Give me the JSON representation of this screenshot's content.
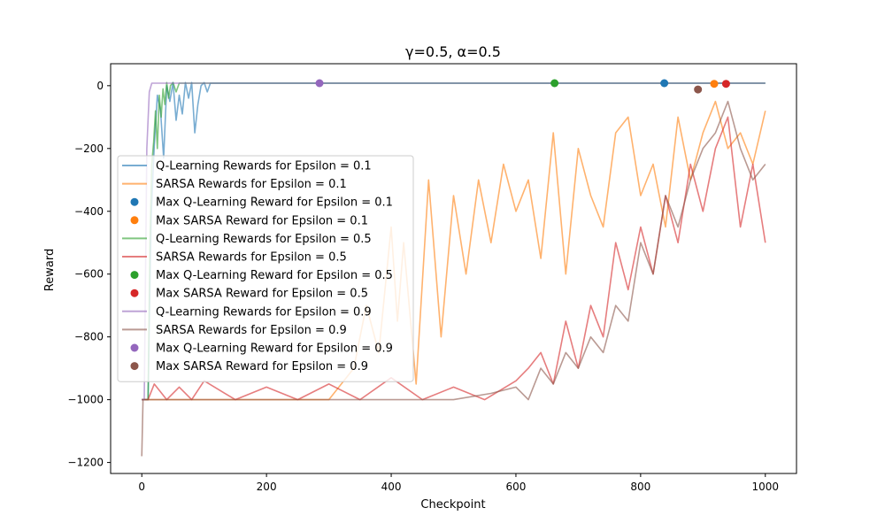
{
  "chart_data": {
    "type": "line",
    "title": "γ=0.5, α=0.5",
    "xlabel": "Checkpoint",
    "ylabel": "Reward",
    "xlim": [
      -50,
      1050
    ],
    "ylim": [
      -1235,
      70
    ],
    "x_ticks": [
      0,
      200,
      400,
      600,
      800,
      1000
    ],
    "y_ticks": [
      0,
      -200,
      -400,
      -600,
      -800,
      -1000,
      -1200
    ],
    "grid": false,
    "legend_position": "center-left",
    "series": [
      {
        "name": "Q-Learning Rewards for Epsilon = 0.1",
        "kind": "line",
        "color": "#1f77b4",
        "opacity": 0.6,
        "x": [
          0,
          5,
          10,
          15,
          20,
          25,
          30,
          35,
          40,
          45,
          50,
          55,
          60,
          65,
          70,
          75,
          80,
          85,
          90,
          95,
          100,
          105,
          110,
          200,
          400,
          600,
          800,
          1000
        ],
        "y": [
          -1000,
          -1000,
          -1000,
          -420,
          -190,
          -30,
          -80,
          -230,
          0,
          -50,
          10,
          -110,
          -30,
          -90,
          10,
          -40,
          10,
          -150,
          -60,
          0,
          10,
          -20,
          8,
          8,
          8,
          8,
          8,
          8
        ]
      },
      {
        "name": "SARSA Rewards for Epsilon = 0.1",
        "kind": "line",
        "color": "#ff7f0e",
        "opacity": 0.6,
        "x": [
          0,
          30,
          60,
          100,
          150,
          200,
          250,
          300,
          340,
          360,
          380,
          400,
          410,
          420,
          440,
          460,
          480,
          500,
          520,
          540,
          560,
          580,
          600,
          620,
          640,
          660,
          680,
          700,
          720,
          740,
          760,
          780,
          800,
          820,
          840,
          860,
          880,
          900,
          920,
          940,
          960,
          980,
          1000
        ],
        "y": [
          -1000,
          -1000,
          -1000,
          -1000,
          -1000,
          -1000,
          -1000,
          -1000,
          -900,
          -700,
          -850,
          -450,
          -750,
          -500,
          -950,
          -300,
          -800,
          -350,
          -600,
          -300,
          -500,
          -250,
          -400,
          -300,
          -550,
          -150,
          -600,
          -200,
          -350,
          -450,
          -150,
          -100,
          -350,
          -250,
          -450,
          -100,
          -300,
          -150,
          -50,
          -200,
          -150,
          -250,
          -80
        ]
      },
      {
        "name": "Q-Learning Rewards for Epsilon = 0.5",
        "kind": "line",
        "color": "#2ca02c",
        "opacity": 0.6,
        "x": [
          0,
          5,
          10,
          13,
          16,
          19,
          22,
          25,
          28,
          31,
          34,
          37,
          40,
          43,
          46,
          50,
          55,
          60,
          65,
          200,
          400,
          600,
          800,
          1000
        ],
        "y": [
          -1000,
          -1000,
          -1000,
          -500,
          -250,
          -180,
          -80,
          -200,
          -30,
          -100,
          -10,
          -60,
          10,
          -40,
          0,
          10,
          -20,
          8,
          8,
          8,
          8,
          8,
          8,
          8
        ]
      },
      {
        "name": "SARSA Rewards for Epsilon = 0.5",
        "kind": "line",
        "color": "#d62728",
        "opacity": 0.6,
        "x": [
          0,
          10,
          20,
          40,
          60,
          80,
          100,
          150,
          200,
          250,
          300,
          350,
          400,
          450,
          500,
          550,
          600,
          620,
          640,
          660,
          680,
          700,
          720,
          740,
          760,
          780,
          800,
          820,
          840,
          860,
          880,
          900,
          920,
          940,
          960,
          980,
          1000
        ],
        "y": [
          -1000,
          -1000,
          -950,
          -1000,
          -960,
          -1000,
          -940,
          -1000,
          -960,
          -1000,
          -950,
          -1000,
          -930,
          -1000,
          -960,
          -1000,
          -940,
          -900,
          -850,
          -950,
          -750,
          -900,
          -700,
          -800,
          -500,
          -650,
          -450,
          -600,
          -350,
          -500,
          -250,
          -400,
          -200,
          -100,
          -450,
          -250,
          -500
        ]
      },
      {
        "name": "Q-Learning Rewards for Epsilon = 0.9",
        "kind": "line",
        "color": "#9467bd",
        "opacity": 0.6,
        "x": [
          0,
          4,
          8,
          12,
          16,
          20,
          200,
          400,
          600,
          800,
          1000
        ],
        "y": [
          -1000,
          -1000,
          -200,
          -20,
          8,
          8,
          8,
          8,
          8,
          8,
          8
        ]
      },
      {
        "name": "SARSA Rewards for Epsilon = 0.9",
        "kind": "line",
        "color": "#8c564b",
        "opacity": 0.6,
        "x": [
          0,
          2,
          5,
          10,
          100,
          200,
          300,
          400,
          500,
          560,
          600,
          620,
          640,
          660,
          680,
          700,
          720,
          740,
          760,
          780,
          800,
          820,
          840,
          860,
          880,
          900,
          920,
          940,
          960,
          980,
          1000
        ],
        "y": [
          -1180,
          -1000,
          -1000,
          -1000,
          -1000,
          -1000,
          -1000,
          -1000,
          -1000,
          -980,
          -960,
          -1000,
          -900,
          -950,
          -850,
          -900,
          -800,
          -850,
          -700,
          -750,
          -500,
          -600,
          -350,
          -450,
          -300,
          -200,
          -150,
          -50,
          -200,
          -300,
          -250
        ]
      },
      {
        "name": "Max Q-Learning Reward for Epsilon = 0.1",
        "kind": "point",
        "color": "#1f77b4",
        "x": [
          838
        ],
        "y": [
          8
        ]
      },
      {
        "name": "Max SARSA Reward for Epsilon = 0.1",
        "kind": "point",
        "color": "#ff7f0e",
        "x": [
          918
        ],
        "y": [
          6
        ]
      },
      {
        "name": "Max Q-Learning Reward for Epsilon = 0.5",
        "kind": "point",
        "color": "#2ca02c",
        "x": [
          662
        ],
        "y": [
          8
        ]
      },
      {
        "name": "Max SARSA Reward for Epsilon = 0.5",
        "kind": "point",
        "color": "#d62728",
        "x": [
          937
        ],
        "y": [
          6
        ]
      },
      {
        "name": "Max Q-Learning Reward for Epsilon = 0.9",
        "kind": "point",
        "color": "#9467bd",
        "x": [
          285
        ],
        "y": [
          8
        ]
      },
      {
        "name": "Max SARSA Reward for Epsilon = 0.9",
        "kind": "point",
        "color": "#8c564b",
        "x": [
          892
        ],
        "y": [
          -12
        ]
      }
    ],
    "legend_order": [
      "Q-Learning Rewards for Epsilon = 0.1",
      "SARSA Rewards for Epsilon = 0.1",
      "Max Q-Learning Reward for Epsilon = 0.1",
      "Max SARSA Reward for Epsilon = 0.1",
      "Q-Learning Rewards for Epsilon = 0.5",
      "SARSA Rewards for Epsilon = 0.5",
      "Max Q-Learning Reward for Epsilon = 0.5",
      "Max SARSA Reward for Epsilon = 0.5",
      "Q-Learning Rewards for Epsilon = 0.9",
      "SARSA Rewards for Epsilon = 0.9",
      "Max Q-Learning Reward for Epsilon = 0.9",
      "Max SARSA Reward for Epsilon = 0.9"
    ]
  }
}
